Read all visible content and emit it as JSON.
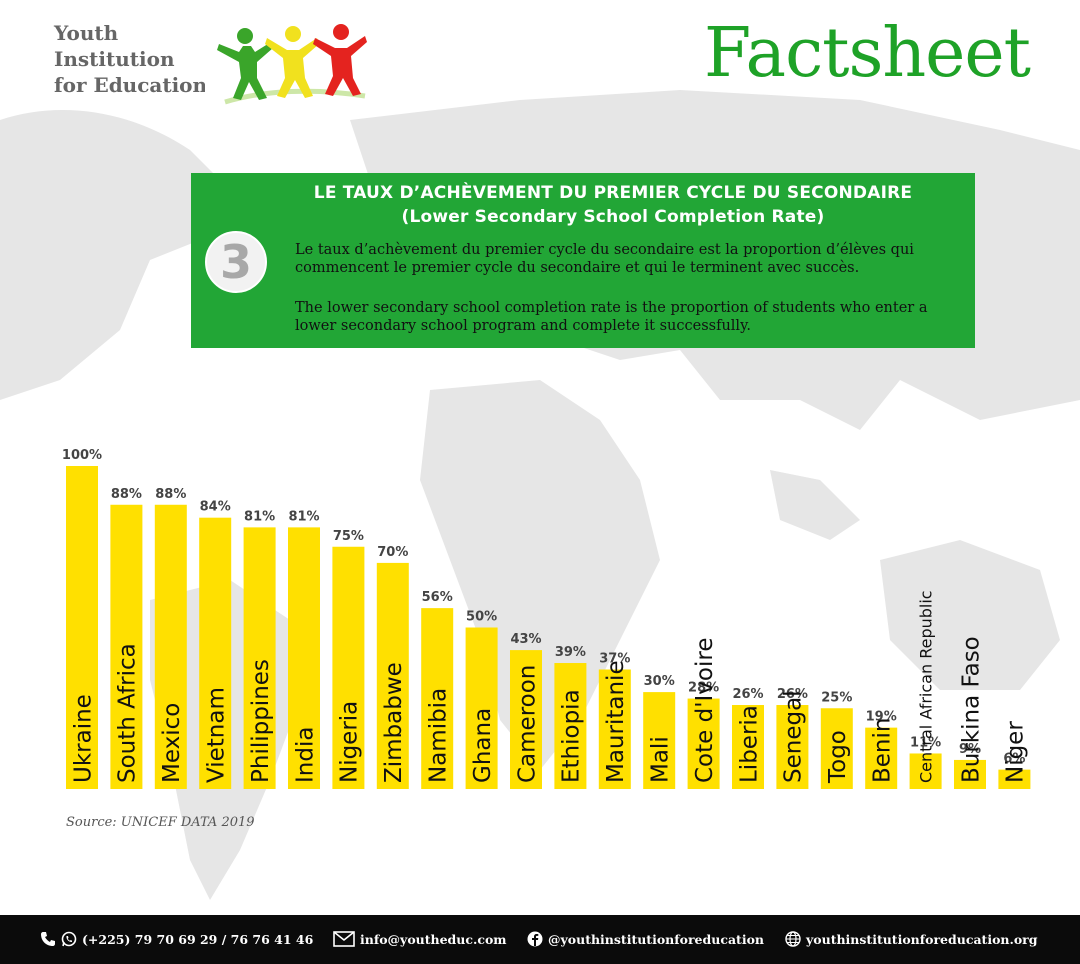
{
  "org": {
    "line1": "Youth",
    "line2": "Institution",
    "line3": "for Education"
  },
  "header": {
    "title": "Factsheet"
  },
  "infobox": {
    "number": "3",
    "title_fr": "LE TAUX D’ACHÈVEMENT DU PREMIER CYCLE DU SECONDAIRE",
    "title_en": "(Lower Secondary School Completion Rate)",
    "text_fr": "Le taux d’achèvement du premier cycle du secondaire est la proportion d’élèves qui commencent le premier cycle du secondaire et qui le terminent avec succès.",
    "text_en": "The lower secondary school completion rate is the proportion  of students who enter a lower secondary school  program and complete it successfully."
  },
  "source": "Source: UNICEF DATA 2019",
  "footer": {
    "phone": "(+225) 79 70 69 29 / 76 76 41 46",
    "email": "info@youtheduc.com",
    "facebook": "@youthinstitutionforeducation",
    "website": "youthinstitutionforeducation.org"
  },
  "colors": {
    "brand_green": "#1ea227",
    "box_green": "#22a636",
    "bar_yellow": "#ffe000",
    "footer_bg": "#0b0b0b"
  },
  "chart_data": {
    "type": "bar",
    "title": "",
    "xlabel": "",
    "ylabel": "",
    "ylim": [
      0,
      100
    ],
    "grid": false,
    "categories": [
      "Ukraine",
      "South Africa",
      "Mexico",
      "Vietnam",
      "Philippines",
      "India",
      "Nigeria",
      "Zimbabwe",
      "Namibia",
      "Ghana",
      "Cameroon",
      "Ethiopia",
      "Mauritanie",
      "Mali",
      "Cote d'Ivoire",
      "Liberia",
      "Senegal",
      "Togo",
      "Benin",
      "Central African Republic",
      "Burkina Faso",
      "Niger"
    ],
    "values": [
      100,
      88,
      88,
      84,
      81,
      81,
      75,
      70,
      56,
      50,
      43,
      39,
      37,
      30,
      28,
      26,
      26,
      25,
      19,
      11,
      9,
      6
    ],
    "labels": [
      "100%",
      "88%",
      "88%",
      "84%",
      "81%",
      "81%",
      "75%",
      "70%",
      "56%",
      "50%",
      "43%",
      "39%",
      "37%",
      "30%",
      "28%",
      "26%",
      "26%",
      "25%",
      "19%",
      "11%",
      "9%",
      "6%"
    ]
  }
}
